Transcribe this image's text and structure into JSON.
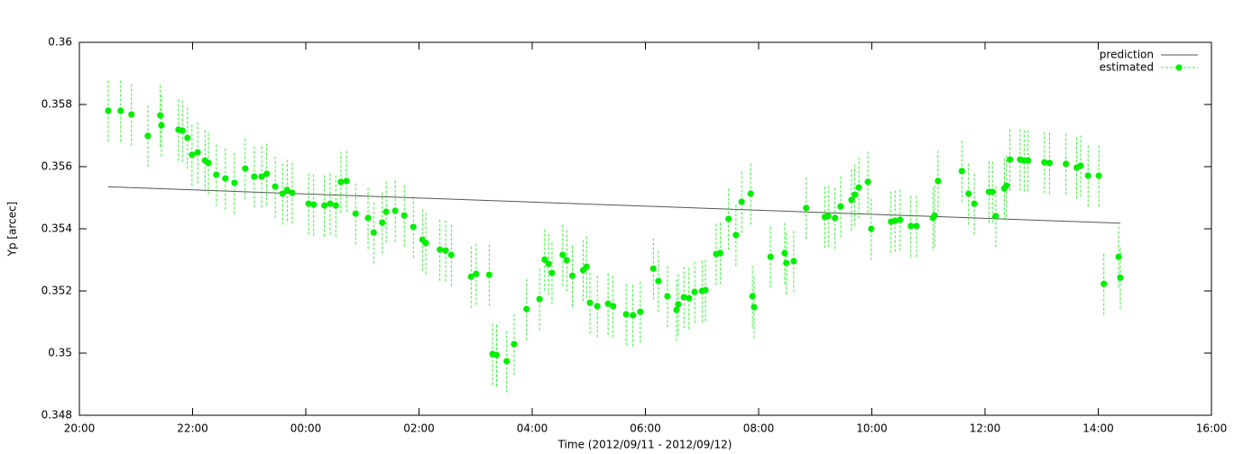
{
  "chart_data": {
    "type": "errorbar-line",
    "xlabel": "Time (2012/09/11 - 2012/09/12)",
    "ylabel": "Yp [arcec]",
    "xlim": [
      20,
      40
    ],
    "xticks": [
      {
        "value": 20,
        "label": "20:00"
      },
      {
        "value": 22,
        "label": "22:00"
      },
      {
        "value": 24,
        "label": "00:00"
      },
      {
        "value": 26,
        "label": "02:00"
      },
      {
        "value": 28,
        "label": "04:00"
      },
      {
        "value": 30,
        "label": "06:00"
      },
      {
        "value": 32,
        "label": "08:00"
      },
      {
        "value": 34,
        "label": "10:00"
      },
      {
        "value": 36,
        "label": "12:00"
      },
      {
        "value": 38,
        "label": "14:00"
      },
      {
        "value": 40,
        "label": "16:00"
      }
    ],
    "ylim": [
      0.348,
      0.36
    ],
    "yticks": [
      0.348,
      0.35,
      0.352,
      0.354,
      0.356,
      0.358,
      0.36
    ],
    "grid": false,
    "legend": "top-right",
    "series": [
      {
        "name": "prediction",
        "color": "#555555",
        "x": [
          20.51,
          38.39
        ],
        "values": [
          0.35535,
          0.35418
        ]
      },
      {
        "name": "estimated",
        "color": "#00ee00",
        "x": [
          20.51,
          20.73,
          20.92,
          21.21,
          21.43,
          21.45,
          21.75,
          21.82,
          21.91,
          21.99,
          22.09,
          22.22,
          22.28,
          22.42,
          22.58,
          22.74,
          22.93,
          23.09,
          23.22,
          23.31,
          23.46,
          23.59,
          23.67,
          23.76,
          24.05,
          24.14,
          24.33,
          24.43,
          24.53,
          24.62,
          24.72,
          24.88,
          25.1,
          25.2,
          25.35,
          25.42,
          25.58,
          25.74,
          25.9,
          26.06,
          26.12,
          26.37,
          26.47,
          26.57,
          26.92,
          27.01,
          27.24,
          27.3,
          27.37,
          27.55,
          27.68,
          27.9,
          28.13,
          28.22,
          28.29,
          28.35,
          28.54,
          28.61,
          28.71,
          28.9,
          28.96,
          29.02,
          29.15,
          29.34,
          29.43,
          29.66,
          29.78,
          29.91,
          30.14,
          30.23,
          30.39,
          30.55,
          30.58,
          30.68,
          30.77,
          30.87,
          31.0,
          31.06,
          31.25,
          31.32,
          31.47,
          31.6,
          31.7,
          31.86,
          31.89,
          31.92,
          32.21,
          32.46,
          32.49,
          32.62,
          32.84,
          33.17,
          33.23,
          33.35,
          33.45,
          33.64,
          33.7,
          33.77,
          33.93,
          33.99,
          34.34,
          34.41,
          34.5,
          34.69,
          34.79,
          35.08,
          35.11,
          35.17,
          35.59,
          35.71,
          35.81,
          36.07,
          36.13,
          36.19,
          36.34,
          36.38,
          36.44,
          36.62,
          36.69,
          36.76,
          37.05,
          37.14,
          37.43,
          37.62,
          37.69,
          37.82,
          38.01,
          38.1,
          38.36,
          38.39
        ],
        "values": [
          0.3578,
          0.3578,
          0.35768,
          0.35699,
          0.35765,
          0.35733,
          0.35719,
          0.35716,
          0.35693,
          0.35638,
          0.35646,
          0.3562,
          0.35612,
          0.35574,
          0.35562,
          0.35548,
          0.35594,
          0.35568,
          0.35568,
          0.35577,
          0.35536,
          0.35513,
          0.35525,
          0.35516,
          0.35481,
          0.35478,
          0.35475,
          0.35481,
          0.35475,
          0.35551,
          0.35554,
          0.35449,
          0.35435,
          0.35388,
          0.3542,
          0.35455,
          0.35458,
          0.35443,
          0.35406,
          0.35365,
          0.35354,
          0.35333,
          0.3533,
          0.35316,
          0.35246,
          0.35255,
          0.35252,
          0.34997,
          0.34994,
          0.34974,
          0.35029,
          0.35142,
          0.35174,
          0.35301,
          0.35287,
          0.35258,
          0.35316,
          0.35299,
          0.35249,
          0.35267,
          0.35278,
          0.35162,
          0.35151,
          0.35159,
          0.35151,
          0.35125,
          0.35122,
          0.35133,
          0.35272,
          0.35232,
          0.35183,
          0.35139,
          0.35157,
          0.3518,
          0.35177,
          0.35197,
          0.352,
          0.35203,
          0.35319,
          0.35322,
          0.35432,
          0.3538,
          0.35487,
          0.35513,
          0.35183,
          0.35148,
          0.3531,
          0.35322,
          0.3529,
          0.35296,
          0.35467,
          0.35438,
          0.35441,
          0.35435,
          0.35472,
          0.35493,
          0.3551,
          0.35533,
          0.35551,
          0.354,
          0.35423,
          0.35426,
          0.35429,
          0.35409,
          0.35409,
          0.35435,
          0.35443,
          0.35554,
          0.35586,
          0.35513,
          0.35481,
          0.35519,
          0.35519,
          0.35441,
          0.3553,
          0.35539,
          0.35623,
          0.35623,
          0.3562,
          0.3562,
          0.35614,
          0.35612,
          0.35609,
          0.35597,
          0.35603,
          0.35571,
          0.35571,
          0.35223,
          0.3531,
          0.35243
        ],
        "errors": [
          0.001,
          0.001,
          0.001,
          0.001,
          0.001,
          0.001,
          0.001,
          0.001,
          0.001,
          0.001,
          0.001,
          0.001,
          0.001,
          0.001,
          0.001,
          0.001,
          0.001,
          0.001,
          0.001,
          0.001,
          0.001,
          0.001,
          0.001,
          0.001,
          0.001,
          0.001,
          0.001,
          0.001,
          0.001,
          0.001,
          0.001,
          0.001,
          0.001,
          0.001,
          0.001,
          0.001,
          0.001,
          0.001,
          0.001,
          0.001,
          0.001,
          0.001,
          0.001,
          0.001,
          0.001,
          0.001,
          0.001,
          0.001,
          0.001,
          0.001,
          0.001,
          0.001,
          0.001,
          0.001,
          0.001,
          0.001,
          0.001,
          0.001,
          0.001,
          0.001,
          0.001,
          0.001,
          0.001,
          0.001,
          0.001,
          0.001,
          0.001,
          0.001,
          0.001,
          0.001,
          0.001,
          0.001,
          0.001,
          0.001,
          0.001,
          0.001,
          0.001,
          0.001,
          0.001,
          0.001,
          0.001,
          0.001,
          0.001,
          0.001,
          0.001,
          0.001,
          0.001,
          0.001,
          0.001,
          0.001,
          0.001,
          0.001,
          0.001,
          0.001,
          0.001,
          0.001,
          0.001,
          0.001,
          0.001,
          0.001,
          0.001,
          0.001,
          0.001,
          0.001,
          0.001,
          0.001,
          0.001,
          0.001,
          0.001,
          0.001,
          0.001,
          0.001,
          0.001,
          0.001,
          0.001,
          0.001,
          0.001,
          0.001,
          0.001,
          0.001,
          0.001,
          0.001,
          0.001,
          0.001,
          0.001,
          0.001,
          0.001,
          0.001,
          0.001,
          0.001
        ]
      }
    ]
  }
}
